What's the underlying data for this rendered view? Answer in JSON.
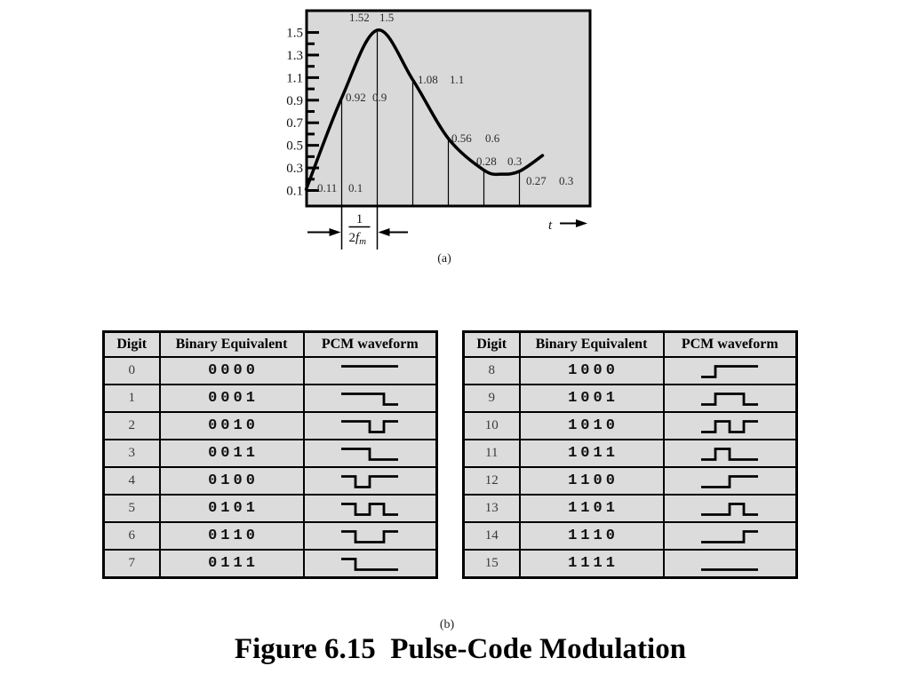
{
  "figure": {
    "caption": "Figure 6.15  Pulse-Code Modulation",
    "sub_a": "(a)",
    "sub_b": "(b)"
  },
  "chart_data": {
    "type": "line",
    "title": "",
    "xlabel": "t",
    "ylabel": "",
    "x_arrow_label": "t",
    "grid": false,
    "legend": null,
    "plot_bg": "#d9d9d9",
    "line_color": "#000000",
    "y_tick_labels": [
      "1.5",
      "1.3",
      "1.1",
      "0.9",
      "0.7",
      "0.5",
      "0.3",
      "0.1"
    ],
    "y_minor_tick_step": 0.1,
    "ylim": [
      0,
      1.66
    ],
    "x_units": "multiples of 1/(2fm)",
    "sampling_interval_label": {
      "numerator": "1",
      "denominator_coeff": "2",
      "denominator_var": "f",
      "denominator_sub": "m"
    },
    "interval_between_samples": [
      1,
      2
    ],
    "samples": [
      {
        "t": 0,
        "actual": 0.11,
        "quantized": 0.1,
        "actual_label": "0.11",
        "quantized_label": "0.1"
      },
      {
        "t": 1,
        "actual": 0.92,
        "quantized": 0.9,
        "actual_label": "0.92",
        "quantized_label": "0.9"
      },
      {
        "t": 2,
        "actual": 1.52,
        "quantized": 1.5,
        "actual_label": "1.52",
        "quantized_label": "1.5"
      },
      {
        "t": 3,
        "actual": 1.08,
        "quantized": 1.1,
        "actual_label": "1.08",
        "quantized_label": "1.1"
      },
      {
        "t": 4,
        "actual": 0.56,
        "quantized": 0.6,
        "actual_label": "0.56",
        "quantized_label": "0.6"
      },
      {
        "t": 5,
        "actual": 0.28,
        "quantized": 0.3,
        "actual_label": "0.28",
        "quantized_label": "0.3"
      },
      {
        "t": 6,
        "actual": 0.27,
        "quantized": 0.3,
        "actual_label": "0.27",
        "quantized_label": "0.3"
      }
    ],
    "curve_points": [
      [
        0,
        0.11
      ],
      [
        1,
        0.92
      ],
      [
        2,
        1.52
      ],
      [
        3,
        1.08
      ],
      [
        4,
        0.56
      ],
      [
        5,
        0.28
      ],
      [
        5.5,
        0.245
      ],
      [
        6,
        0.27
      ],
      [
        6.65,
        0.41
      ]
    ]
  },
  "waveform_encoding": {
    "bit_0_level": "high",
    "bit_1_level": "low"
  },
  "tables": [
    {
      "headers": [
        "Digit",
        "Binary Equivalent",
        "PCM waveform"
      ],
      "rows": [
        {
          "digit": "0",
          "binary": "0000"
        },
        {
          "digit": "1",
          "binary": "0001"
        },
        {
          "digit": "2",
          "binary": "0010"
        },
        {
          "digit": "3",
          "binary": "0011"
        },
        {
          "digit": "4",
          "binary": "0100"
        },
        {
          "digit": "5",
          "binary": "0101"
        },
        {
          "digit": "6",
          "binary": "0110"
        },
        {
          "digit": "7",
          "binary": "0111"
        }
      ]
    },
    {
      "headers": [
        "Digit",
        "Binary Equivalent",
        "PCM waveform"
      ],
      "rows": [
        {
          "digit": "8",
          "binary": "1000"
        },
        {
          "digit": "9",
          "binary": "1001"
        },
        {
          "digit": "10",
          "binary": "1010"
        },
        {
          "digit": "11",
          "binary": "1011"
        },
        {
          "digit": "12",
          "binary": "1100"
        },
        {
          "digit": "13",
          "binary": "1101"
        },
        {
          "digit": "14",
          "binary": "1110"
        },
        {
          "digit": "15",
          "binary": "1111"
        }
      ]
    }
  ]
}
